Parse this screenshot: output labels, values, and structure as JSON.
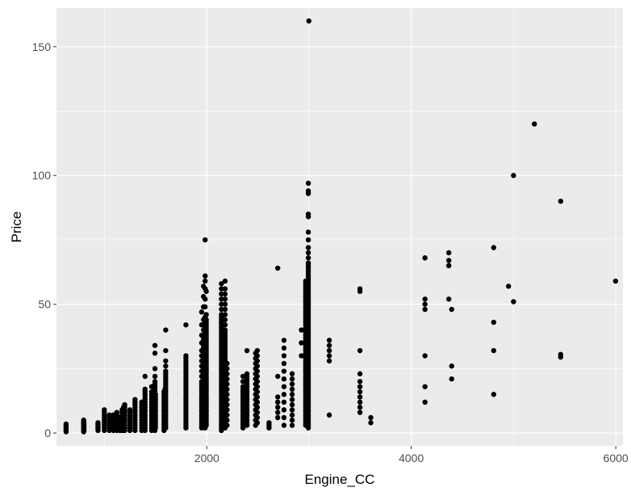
{
  "chart_data": {
    "type": "scatter",
    "title": "",
    "xlabel": "Engine_CC",
    "ylabel": "Price",
    "xlim": [
      530,
      6070
    ],
    "ylim": [
      -5,
      165
    ],
    "xticks": [
      2000,
      4000,
      6000
    ],
    "xminor": [
      1000,
      3000,
      5000
    ],
    "yticks": [
      0,
      50,
      100,
      150
    ],
    "yminor": [
      25,
      75,
      125
    ],
    "xtick_labels": [
      "2000",
      "4000",
      "6000"
    ],
    "ytick_labels": [
      "0",
      "50",
      "100",
      "150"
    ],
    "grid": true,
    "legend": "none",
    "colors": {
      "panel": "#ebebeb",
      "grid": "#ffffff",
      "point": "#000000"
    },
    "columns": [
      {
        "x": 624,
        "y": [
          0.5,
          1,
          1.5,
          2,
          2.5,
          3,
          3.5
        ]
      },
      {
        "x": 796,
        "y": [
          0.5,
          1,
          1.5,
          2,
          2.5,
          3,
          3.5,
          4,
          4.5,
          5
        ]
      },
      {
        "x": 799,
        "y": [
          1,
          2,
          3,
          4
        ]
      },
      {
        "x": 936,
        "y": [
          1,
          1.5,
          2,
          2.5,
          3,
          3.5,
          4
        ]
      },
      {
        "x": 998,
        "y": [
          1,
          2,
          3,
          4,
          5,
          6,
          7,
          8,
          9
        ]
      },
      {
        "x": 1047,
        "y": [
          1,
          2,
          3,
          4,
          5,
          6,
          7
        ]
      },
      {
        "x": 1061,
        "y": [
          2,
          3,
          4,
          5
        ]
      },
      {
        "x": 1086,
        "y": [
          1,
          2,
          3,
          4,
          5,
          6,
          7
        ]
      },
      {
        "x": 1120,
        "y": [
          1,
          2,
          3,
          4,
          5,
          6,
          7,
          8
        ]
      },
      {
        "x": 1150,
        "y": [
          1,
          2,
          3,
          4,
          5,
          6
        ]
      },
      {
        "x": 1172,
        "y": [
          1,
          2,
          3,
          4,
          5,
          6,
          7,
          8,
          9
        ]
      },
      {
        "x": 1186,
        "y": [
          1,
          2,
          3,
          4,
          5,
          6,
          7,
          8,
          9,
          10
        ]
      },
      {
        "x": 1197,
        "y": [
          1,
          2,
          3,
          4,
          5,
          6,
          7,
          8,
          9,
          10,
          11
        ]
      },
      {
        "x": 1248,
        "y": [
          1,
          2,
          3,
          4,
          5,
          6,
          7,
          8,
          9
        ]
      },
      {
        "x": 1298,
        "y": [
          1,
          2,
          3,
          4,
          5,
          6,
          7,
          8,
          9,
          10,
          11,
          12,
          13
        ]
      },
      {
        "x": 1364,
        "y": [
          1,
          2,
          3,
          4,
          5,
          6,
          7,
          8,
          9,
          10,
          11,
          12
        ]
      },
      {
        "x": 1373,
        "y": [
          2,
          3,
          4,
          5,
          6,
          7
        ]
      },
      {
        "x": 1396,
        "y": [
          1,
          2,
          3,
          4,
          5,
          6,
          7,
          8,
          9,
          10,
          11,
          12,
          13,
          14,
          15,
          16,
          17,
          22
        ]
      },
      {
        "x": 1461,
        "y": [
          1,
          2,
          3,
          4,
          5,
          6,
          7,
          8,
          9,
          10,
          11,
          12,
          13,
          14,
          15,
          16,
          18
        ]
      },
      {
        "x": 1493,
        "y": [
          1,
          2,
          3,
          4,
          5,
          6,
          7,
          8,
          9,
          10,
          11,
          12,
          13,
          14,
          15,
          16,
          17,
          18,
          19,
          20,
          22,
          25,
          31,
          34
        ]
      },
      {
        "x": 1498,
        "y": [
          2,
          3,
          4,
          5,
          6,
          7,
          8,
          9,
          10,
          11,
          12,
          13,
          14,
          15
        ]
      },
      {
        "x": 1582,
        "y": [
          1,
          2,
          3,
          4,
          5,
          6,
          7,
          8,
          9,
          10,
          11,
          12,
          13,
          14,
          15,
          16
        ]
      },
      {
        "x": 1591,
        "y": [
          2,
          3,
          4,
          5,
          6,
          7,
          8,
          9,
          10,
          11,
          12,
          13,
          14,
          15,
          16,
          17
        ]
      },
      {
        "x": 1598,
        "y": [
          2,
          3,
          4,
          5,
          6,
          7,
          8,
          9,
          10,
          11,
          12,
          13,
          14,
          15,
          16,
          17,
          18,
          19,
          20,
          21,
          22,
          23,
          24,
          26,
          28,
          32,
          40
        ]
      },
      {
        "x": 1796,
        "y": [
          2,
          3,
          4,
          5,
          6,
          7,
          8,
          9,
          10,
          11,
          12,
          13,
          14,
          15,
          16,
          17,
          18,
          19,
          20,
          21,
          22,
          23,
          24,
          25,
          26,
          27,
          28,
          29,
          30,
          42
        ]
      },
      {
        "x": 1950,
        "y": [
          2,
          3,
          4,
          5,
          6,
          7,
          8,
          9,
          10,
          11,
          12,
          13,
          14,
          15,
          16,
          17,
          18,
          19,
          20,
          22,
          24,
          26,
          28,
          30,
          32,
          35,
          38,
          42,
          47
        ]
      },
      {
        "x": 1968,
        "y": [
          3,
          4,
          5,
          6,
          7,
          8,
          9,
          10,
          11,
          12,
          13,
          14,
          15,
          16,
          17,
          18,
          19,
          20,
          21,
          22,
          23,
          24,
          25,
          26,
          27,
          28,
          29,
          30,
          31,
          32,
          33,
          34,
          35,
          36,
          37,
          38,
          40,
          42,
          44,
          49,
          53,
          57
        ]
      },
      {
        "x": 1984,
        "y": [
          2,
          3,
          4,
          5,
          6,
          7,
          8,
          9,
          10,
          11,
          12,
          13,
          14,
          15,
          16,
          17,
          18,
          19,
          20,
          21,
          22,
          23,
          24,
          25,
          26,
          27,
          28,
          29,
          30,
          31,
          32,
          33,
          34,
          35,
          36,
          37,
          38,
          39,
          40,
          41,
          42,
          43,
          45,
          49,
          52,
          56,
          59,
          61,
          75
        ]
      },
      {
        "x": 1995,
        "y": [
          3,
          4,
          5,
          6,
          7,
          8,
          9,
          10,
          11,
          12,
          13,
          14,
          15,
          16,
          17,
          18,
          19,
          20,
          21,
          22,
          23,
          24,
          25,
          26,
          27,
          28,
          29,
          30,
          31,
          32,
          33,
          34,
          35,
          36,
          37,
          38,
          39,
          40,
          41,
          42,
          43,
          44,
          46,
          55
        ]
      },
      {
        "x": 2143,
        "y": [
          1,
          2,
          3,
          4,
          5,
          6,
          7,
          8,
          9,
          10,
          11,
          12,
          13,
          14,
          15,
          16,
          17,
          18,
          19,
          20,
          21,
          22,
          23,
          24,
          25,
          26,
          27,
          28,
          29,
          30,
          31,
          32,
          33,
          34,
          35,
          36,
          37,
          38,
          39,
          40,
          41,
          42,
          43,
          44,
          45,
          46,
          48,
          50,
          52,
          54,
          56,
          58
        ]
      },
      {
        "x": 2179,
        "y": [
          2,
          3,
          4,
          5,
          6,
          7,
          8,
          9,
          10,
          11,
          12,
          13,
          14,
          15,
          16,
          17,
          18,
          19,
          20,
          21,
          22,
          23,
          24,
          25,
          26,
          27,
          28,
          29,
          30,
          31,
          32,
          33,
          34,
          35,
          36,
          37,
          38,
          39,
          40,
          42,
          44,
          46,
          48,
          50,
          52,
          54,
          56,
          59
        ]
      },
      {
        "x": 2198,
        "y": [
          3,
          5,
          7,
          9,
          11,
          13,
          15,
          17,
          19,
          21,
          23,
          25,
          27
        ]
      },
      {
        "x": 2354,
        "y": [
          2,
          3,
          4,
          5,
          6,
          7,
          8,
          9,
          10,
          11,
          12,
          13,
          14,
          15,
          16,
          17,
          18,
          20,
          22
        ]
      },
      {
        "x": 2393,
        "y": [
          3,
          4,
          5,
          6,
          7,
          8,
          9,
          10,
          11,
          12,
          13,
          14,
          15,
          16,
          17,
          18,
          19,
          20,
          21,
          22,
          23,
          32
        ]
      },
      {
        "x": 2477,
        "y": [
          3,
          5,
          7,
          9,
          11,
          13,
          15,
          17,
          19,
          21,
          23,
          25,
          27,
          29,
          31
        ]
      },
      {
        "x": 2494,
        "y": [
          4,
          6,
          8,
          10,
          12,
          14,
          16,
          18,
          20,
          22,
          24,
          26,
          28,
          30,
          32
        ]
      },
      {
        "x": 2609,
        "y": [
          2,
          3,
          4
        ]
      },
      {
        "x": 2694,
        "y": [
          6,
          8,
          10,
          12,
          14,
          22,
          64
        ]
      },
      {
        "x": 2755,
        "y": [
          3,
          6,
          9,
          12,
          15,
          18,
          21,
          24,
          27,
          30,
          33,
          36
        ]
      },
      {
        "x": 2835,
        "y": [
          3,
          5,
          7,
          9,
          11,
          13,
          15,
          17,
          19,
          21,
          23
        ]
      },
      {
        "x": 2925,
        "y": [
          30,
          35,
          40
        ]
      },
      {
        "x": 2967,
        "y": [
          3,
          4,
          5,
          6,
          7,
          8,
          9,
          10,
          11,
          12,
          13,
          14,
          15,
          16,
          17,
          18,
          19,
          20,
          21,
          22,
          23,
          24,
          25,
          26,
          27,
          28,
          29,
          30,
          31,
          32,
          33,
          34,
          35,
          36,
          37,
          38,
          39,
          40,
          41,
          42,
          43,
          44,
          45,
          46,
          47,
          48,
          49,
          50,
          51,
          52,
          53,
          54,
          55,
          56,
          57,
          58,
          59
        ]
      },
      {
        "x": 2993,
        "y": [
          2,
          3,
          4,
          5,
          6,
          7,
          8,
          9,
          10,
          11,
          12,
          13,
          14,
          15,
          16,
          17,
          18,
          19,
          20,
          21,
          22,
          23,
          24,
          25,
          26,
          27,
          28,
          29,
          30,
          31,
          32,
          33,
          34,
          35,
          36,
          37,
          38,
          39,
          40,
          41,
          42,
          43,
          44,
          45,
          46,
          47,
          48,
          49,
          50,
          51,
          52,
          53,
          54,
          55,
          56,
          57,
          58,
          59,
          60,
          61,
          62,
          63,
          64,
          65,
          66,
          68,
          70,
          72,
          75,
          78,
          84,
          85,
          93,
          94,
          97
        ]
      },
      {
        "x": 2998,
        "y": [
          160
        ]
      },
      {
        "x": 3198,
        "y": [
          7,
          28,
          30,
          32,
          34,
          36
        ]
      },
      {
        "x": 3498,
        "y": [
          8,
          10,
          12,
          14,
          16,
          18,
          20,
          23,
          32,
          55,
          56
        ]
      },
      {
        "x": 3604,
        "y": [
          4,
          6
        ]
      },
      {
        "x": 4134,
        "y": [
          12,
          18,
          30,
          48,
          50,
          52,
          68
        ]
      },
      {
        "x": 4367,
        "y": [
          52,
          65,
          67,
          70
        ]
      },
      {
        "x": 4395,
        "y": [
          21,
          26,
          48
        ]
      },
      {
        "x": 4806,
        "y": [
          15,
          32,
          43,
          72
        ]
      },
      {
        "x": 4951,
        "y": [
          57
        ]
      },
      {
        "x": 5000,
        "y": [
          51,
          100
        ]
      },
      {
        "x": 5204,
        "y": [
          120
        ]
      },
      {
        "x": 5461,
        "y": [
          29.5,
          30.5,
          90
        ]
      },
      {
        "x": 5998,
        "y": [
          59
        ]
      }
    ]
  }
}
